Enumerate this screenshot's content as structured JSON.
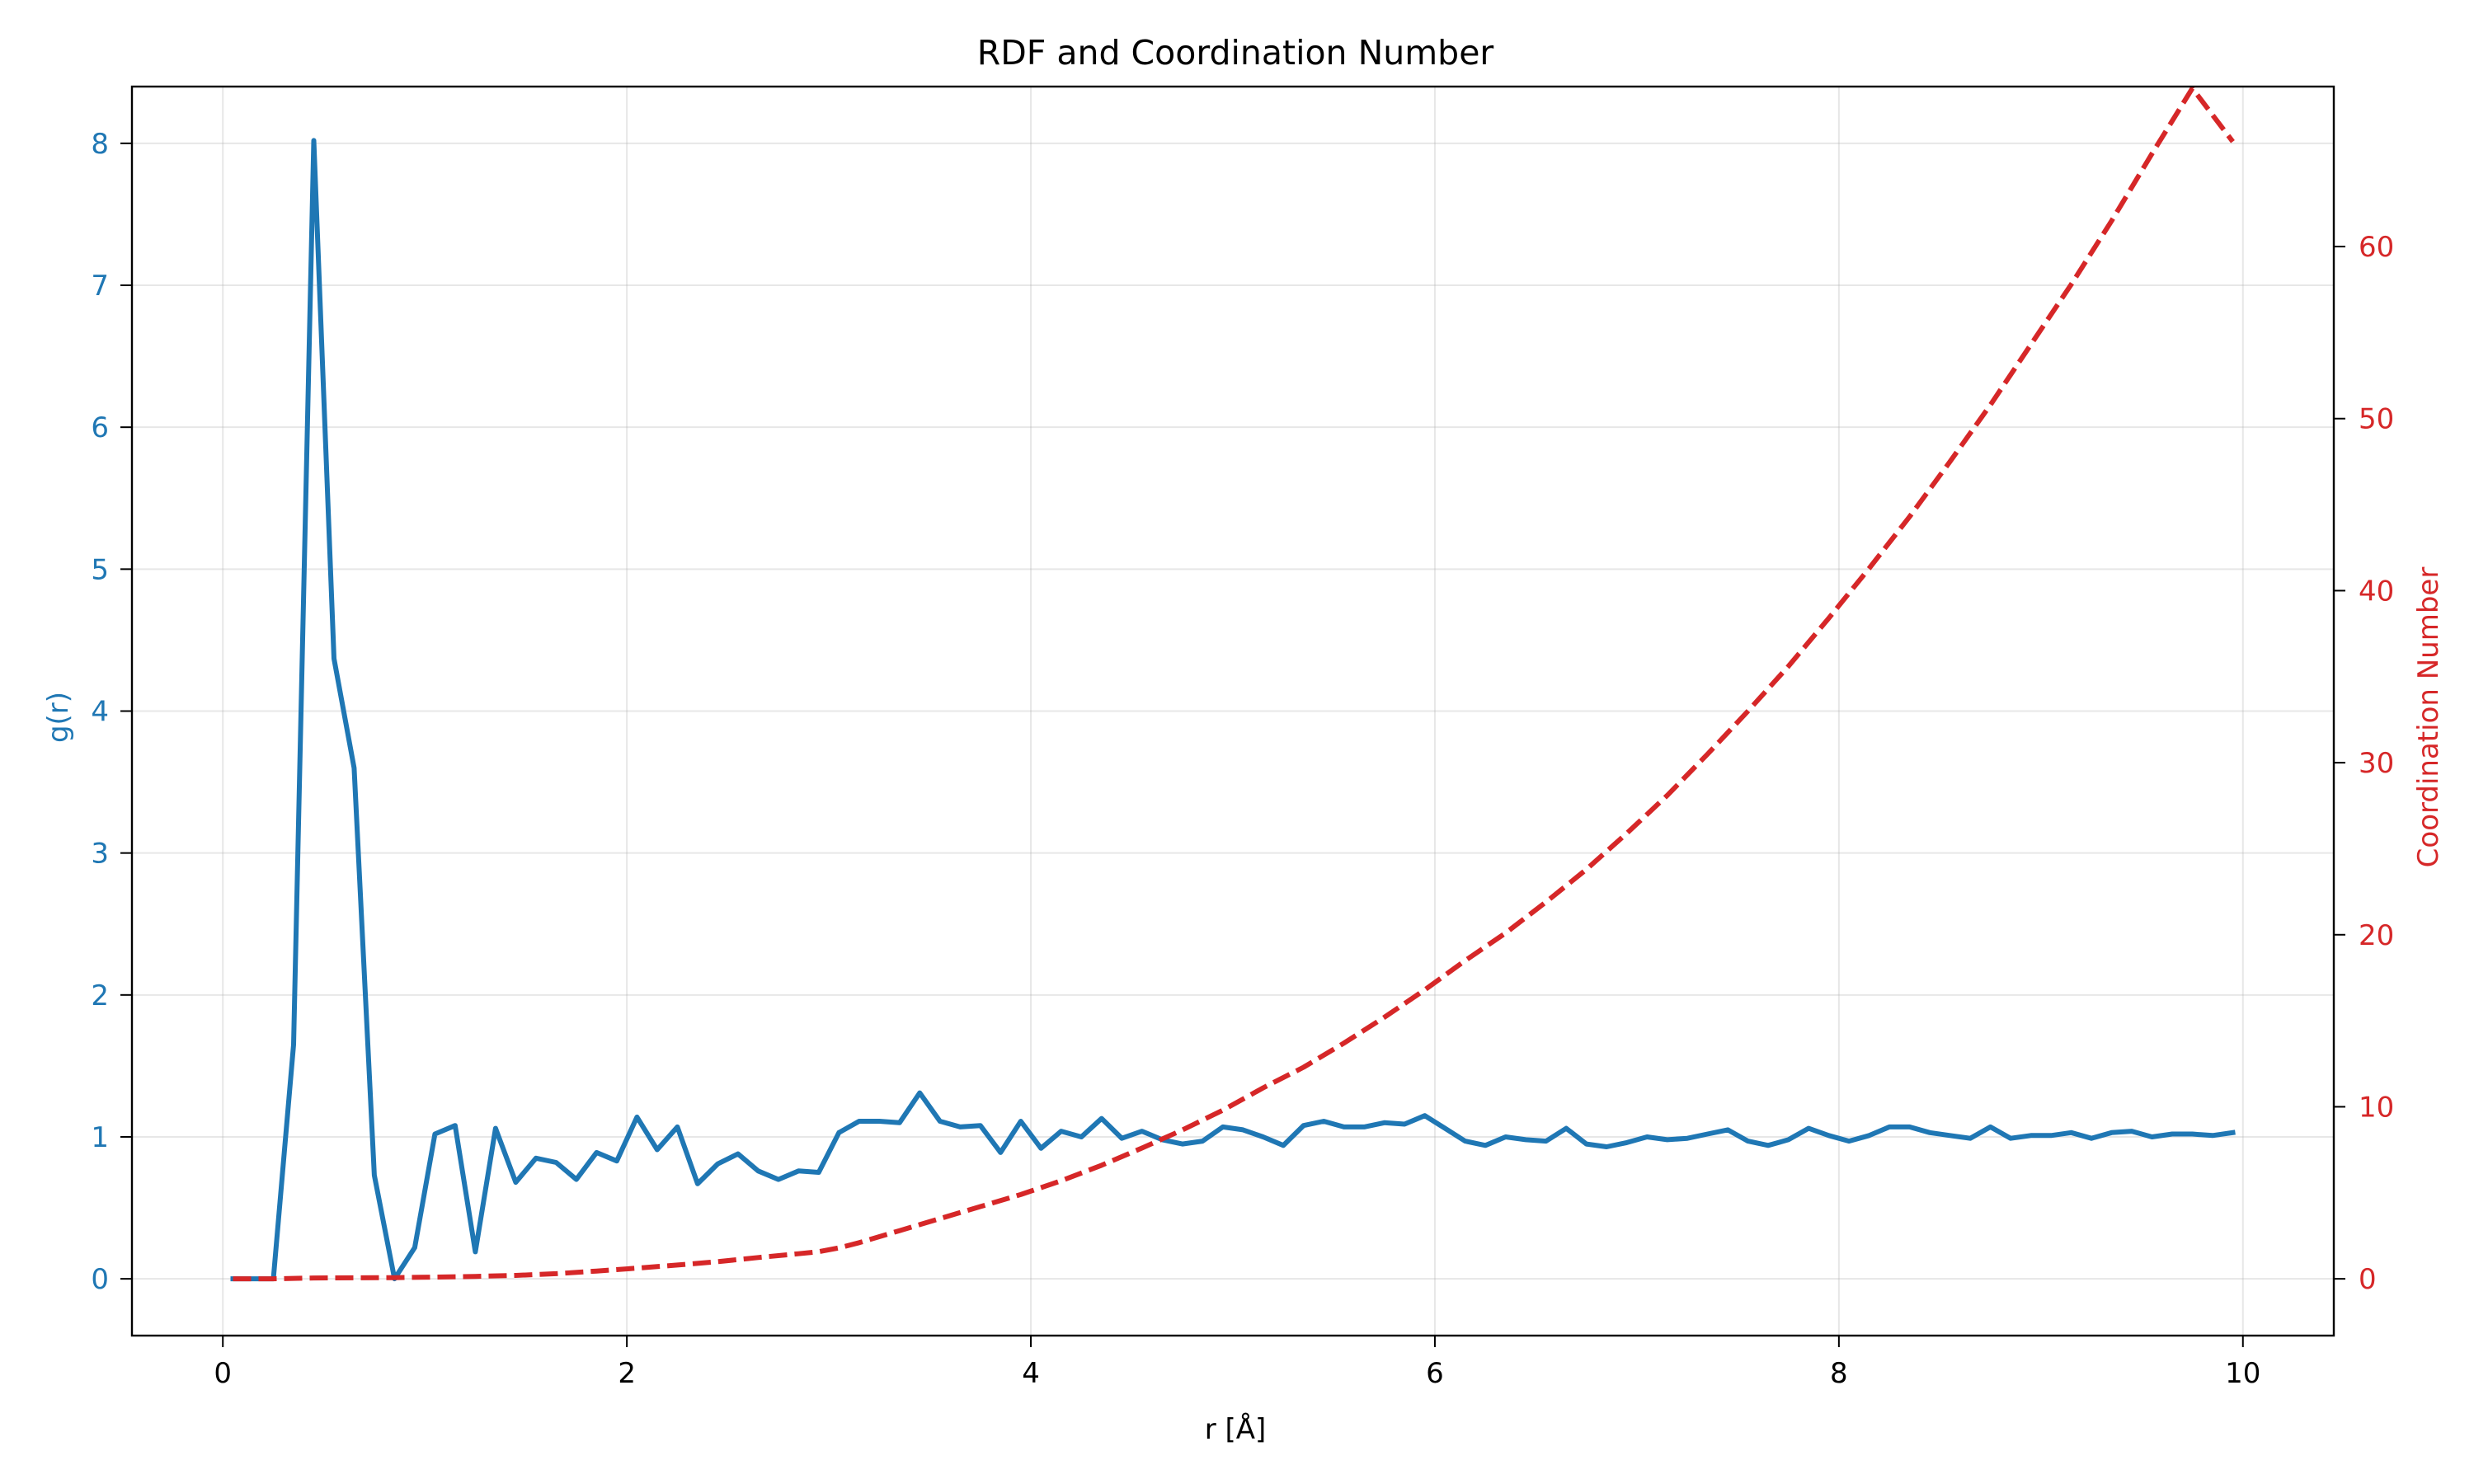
{
  "chart_data": {
    "type": "line",
    "title": "RDF and Coordination Number",
    "xlabel": "r [Å]",
    "ylabel_left": "g(r)",
    "ylabel_right": "Coordination Number",
    "xlim": [
      -0.45,
      10.45
    ],
    "ylim_left": [
      -0.4,
      8.4
    ],
    "ylim_right": [
      -3.3,
      69.3
    ],
    "x_ticks": [
      0,
      2,
      4,
      6,
      8,
      10
    ],
    "y_left_ticks": [
      0,
      1,
      2,
      3,
      4,
      5,
      6,
      7,
      8
    ],
    "y_right_ticks": [
      0,
      10,
      20,
      30,
      40,
      50,
      60
    ],
    "grid": true,
    "colors": {
      "left_axis": "#1f77b4",
      "right_axis": "#d62728"
    },
    "series": [
      {
        "name": "g(r)",
        "axis": "left",
        "style": "solid",
        "color": "#1f77b4",
        "x": [
          0.05,
          0.15,
          0.25,
          0.35,
          0.45,
          0.55,
          0.65,
          0.75,
          0.85,
          0.95,
          1.05,
          1.15,
          1.25,
          1.35,
          1.45,
          1.55,
          1.65,
          1.75,
          1.85,
          1.95,
          2.05,
          2.15,
          2.25,
          2.35,
          2.45,
          2.55,
          2.65,
          2.75,
          2.85,
          2.95,
          3.05,
          3.15,
          3.25,
          3.35,
          3.45,
          3.55,
          3.65,
          3.75,
          3.85,
          3.95,
          4.05,
          4.15,
          4.25,
          4.35,
          4.45,
          4.55,
          4.65,
          4.75,
          4.85,
          4.95,
          5.05,
          5.15,
          5.25,
          5.35,
          5.45,
          5.55,
          5.65,
          5.75,
          5.85,
          5.95,
          6.05,
          6.15,
          6.25,
          6.35,
          6.45,
          6.55,
          6.65,
          6.75,
          6.85,
          6.95,
          7.05,
          7.15,
          7.25,
          7.35,
          7.45,
          7.55,
          7.65,
          7.75,
          7.85,
          7.95,
          8.05,
          8.15,
          8.25,
          8.35,
          8.45,
          8.55,
          8.65,
          8.75,
          8.85,
          8.95,
          9.05,
          9.15,
          9.25,
          9.35,
          9.45,
          9.55,
          9.65,
          9.75,
          9.85,
          9.95
        ],
        "y": [
          0,
          0,
          0,
          1.65,
          8.02,
          4.37,
          3.6,
          0.73,
          0,
          0.22,
          1.02,
          1.08,
          0.19,
          1.06,
          0.68,
          0.85,
          0.82,
          0.7,
          0.89,
          0.83,
          1.14,
          0.91,
          1.07,
          0.67,
          0.81,
          0.88,
          0.76,
          0.7,
          0.76,
          0.75,
          1.03,
          1.11,
          1.11,
          1.1,
          1.31,
          1.11,
          1.07,
          1.08,
          0.89,
          1.11,
          0.92,
          1.04,
          1.0,
          1.13,
          0.99,
          1.04,
          0.98,
          0.95,
          0.97,
          1.07,
          1.05,
          1.0,
          0.94,
          1.08,
          1.11,
          1.07,
          1.07,
          1.1,
          1.09,
          1.15,
          1.06,
          0.97,
          0.94,
          1.0,
          0.98,
          0.97,
          1.06,
          0.95,
          0.93,
          0.96,
          1.0,
          0.98,
          0.99,
          1.02,
          1.05,
          0.97,
          0.94,
          0.98,
          1.06,
          1.01,
          0.97,
          1.01,
          1.07,
          1.07,
          1.03,
          1.01,
          0.99,
          1.07,
          0.99,
          1.01,
          1.01,
          1.03,
          0.99,
          1.03,
          1.04,
          1.0,
          1.02,
          1.02,
          1.01,
          1.03
        ]
      },
      {
        "name": "Coordination Number",
        "axis": "right",
        "style": "dashed",
        "color": "#d62728",
        "x": [
          0.05,
          0.25,
          0.45,
          0.65,
          0.85,
          1.05,
          1.25,
          1.45,
          1.65,
          1.85,
          2.05,
          2.25,
          2.45,
          2.65,
          2.85,
          2.95,
          3.05,
          3.15,
          3.25,
          3.35,
          3.45,
          3.55,
          3.65,
          3.75,
          3.95,
          4.15,
          4.35,
          4.55,
          4.75,
          4.95,
          5.15,
          5.35,
          5.55,
          5.75,
          5.95,
          6.15,
          6.35,
          6.55,
          6.75,
          6.95,
          7.15,
          7.35,
          7.55,
          7.75,
          7.95,
          8.15,
          8.35,
          8.55,
          8.75,
          8.95,
          9.15,
          9.35,
          9.55,
          9.75,
          9.95
        ],
        "y": [
          0,
          0,
          0.05,
          0.06,
          0.07,
          0.1,
          0.14,
          0.2,
          0.3,
          0.45,
          0.62,
          0.8,
          1.0,
          1.24,
          1.46,
          1.58,
          1.8,
          2.1,
          2.45,
          2.8,
          3.15,
          3.5,
          3.85,
          4.2,
          4.9,
          5.7,
          6.6,
          7.6,
          8.65,
          9.8,
          11.1,
          12.3,
          13.7,
          15.2,
          16.8,
          18.5,
          20.1,
          21.9,
          23.8,
          25.9,
          28.1,
          30.5,
          33.0,
          35.6,
          38.4,
          41.3,
          44.3,
          47.5,
          50.8,
          54.3,
          57.8,
          61.5,
          65.4,
          69.2,
          66.1
        ]
      }
    ]
  }
}
